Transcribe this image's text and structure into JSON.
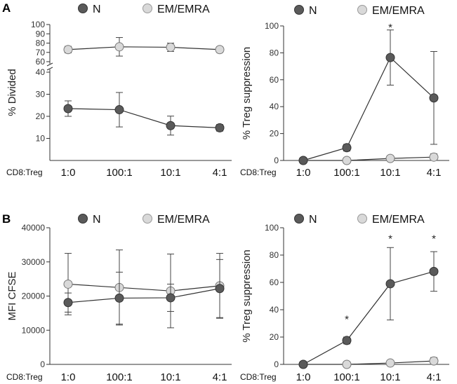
{
  "panels": [
    {
      "letter": "A"
    },
    {
      "letter": "B"
    }
  ],
  "legend": {
    "n_label": "N",
    "em_label": "EM/EMRA"
  },
  "colors": {
    "n_fill": "#5a5a5a",
    "em_fill": "#d9d9d9",
    "line": "#333333"
  },
  "chart_data": [
    {
      "id": "A-left",
      "type": "line",
      "title": "",
      "ylabel": "% Divided",
      "xlabel_prefix": "CD8:Treg",
      "categories": [
        "1:0",
        "100:1",
        "10:1",
        "4:1"
      ],
      "broken_axis": true,
      "ylim_lower": [
        0,
        40
      ],
      "ylim_upper": [
        60,
        100
      ],
      "yticks_lower": [
        10,
        20,
        30,
        40
      ],
      "yticks_upper": [
        60,
        70,
        80,
        90,
        100
      ],
      "series": [
        {
          "name": "N",
          "values": [
            23.5,
            23,
            15.8,
            14.8
          ],
          "errors": [
            3.5,
            7.8,
            4.3,
            1.5
          ]
        },
        {
          "name": "EM/EMRA",
          "values": [
            73,
            76,
            75.5,
            73
          ],
          "errors": [
            3.5,
            10,
            4.5,
            3
          ]
        }
      ],
      "annotations": []
    },
    {
      "id": "A-right",
      "type": "line",
      "title": "",
      "ylabel": "% Treg suppression",
      "xlabel_prefix": "CD8:Treg",
      "categories": [
        "1:0",
        "100:1",
        "10:1",
        "4:1"
      ],
      "ylim": [
        0,
        100
      ],
      "yticks": [
        0,
        20,
        40,
        60,
        80,
        100
      ],
      "series": [
        {
          "name": "N",
          "values": [
            0,
            9.5,
            76.5,
            46.5
          ],
          "errors": [
            0,
            2.5,
            20.5,
            34.5
          ]
        },
        {
          "name": "EM/EMRA",
          "values": [
            0,
            0,
            1.5,
            2.5
          ],
          "errors": [
            0,
            0,
            0.5,
            2.5
          ]
        }
      ],
      "annotations": [
        {
          "text": "*",
          "category": "10:1",
          "y": 97
        }
      ]
    },
    {
      "id": "B-left",
      "type": "line",
      "title": "",
      "ylabel": "MFI CFSE",
      "xlabel_prefix": "CD8:Treg",
      "categories": [
        "1:0",
        "100:1",
        "10:1",
        "4:1"
      ],
      "ylim": [
        0,
        40000
      ],
      "yticks": [
        0,
        10000,
        20000,
        30000,
        40000
      ],
      "series": [
        {
          "name": "N",
          "values": [
            18100,
            19400,
            19500,
            22200
          ],
          "errors": [
            2800,
            7600,
            4000,
            8500
          ]
        },
        {
          "name": "EM/EMRA",
          "values": [
            23500,
            22500,
            21500,
            23000
          ],
          "errors": [
            9000,
            11000,
            10800,
            9500
          ]
        }
      ],
      "annotations": []
    },
    {
      "id": "B-right",
      "type": "line",
      "title": "",
      "ylabel": "% Treg suppression",
      "xlabel_prefix": "CD8:Treg",
      "categories": [
        "1:0",
        "100:1",
        "10:1",
        "4:1"
      ],
      "ylim": [
        0,
        100
      ],
      "yticks": [
        0,
        20,
        40,
        60,
        80,
        100
      ],
      "series": [
        {
          "name": "N",
          "values": [
            0,
            17.5,
            59,
            68
          ],
          "errors": [
            0,
            2.5,
            26.5,
            14.5
          ]
        },
        {
          "name": "EM/EMRA",
          "values": [
            0,
            0,
            1,
            2.5
          ],
          "errors": [
            0,
            0,
            0.5,
            2.5
          ]
        }
      ],
      "annotations": [
        {
          "text": "*",
          "category": "100:1",
          "y": 31
        },
        {
          "text": "*",
          "category": "10:1",
          "y": 90
        },
        {
          "text": "*",
          "category": "4:1",
          "y": 90
        }
      ]
    }
  ]
}
